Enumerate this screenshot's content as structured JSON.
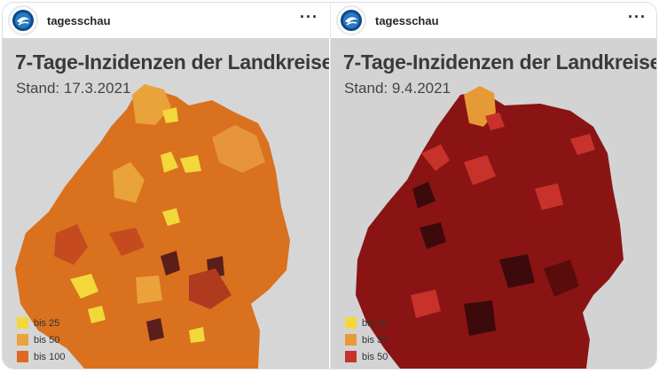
{
  "posts": [
    {
      "username": "tagesschau",
      "more_icon": "ellipsis-icon",
      "title": "7-Tage-Inzidenzen der Landkreise",
      "date": "Stand: 17.3.2021",
      "legend": [
        {
          "label": "bis 25",
          "color": "#f2d83a"
        },
        {
          "label": "bis 50",
          "color": "#eaa23a"
        },
        {
          "label": "bis 100",
          "color": "#dd6a22"
        }
      ],
      "map_colors": {
        "base": "#d9711f",
        "light": "#eaa23a",
        "yellow": "#f2d83a",
        "dark": "#b03a1e",
        "darkest": "#5a1f1a"
      }
    },
    {
      "username": "tagesschau",
      "more_icon": "ellipsis-icon",
      "title": "7-Tage-Inzidenzen der Landkreise",
      "date": "Stand: 9.4.2021",
      "legend": [
        {
          "label": "bis 20",
          "color": "#f2d83a"
        },
        {
          "label": "bis 35",
          "color": "#e69a35"
        },
        {
          "label": "bis 50",
          "color": "#c8322a"
        }
      ],
      "map_colors": {
        "base": "#8a1414",
        "light": "#c8322a",
        "orange": "#e69a35",
        "dark": "#6a0f10",
        "darkest": "#3c0a0a"
      }
    }
  ]
}
